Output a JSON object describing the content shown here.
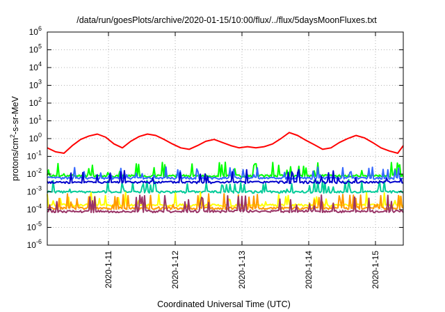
{
  "chart_data": {
    "type": "line",
    "title": "/data/run/goesPlots/archive/2020-01-15/10:00/flux/../flux/5daysMoonFluxes.txt",
    "xlabel": "Coordinated Universal Time (UTC)",
    "ylabel_main": "protons/cm",
    "ylabel_sup": "2",
    "ylabel_rest": "-s-sr-MeV",
    "y_scale": "log",
    "ylim_exp": [
      -6,
      6
    ],
    "y_ticks": [
      {
        "base": "10",
        "exp": "-6"
      },
      {
        "base": "10",
        "exp": "-5"
      },
      {
        "base": "10",
        "exp": "-4"
      },
      {
        "base": "10",
        "exp": "-3"
      },
      {
        "base": "10",
        "exp": "-2"
      },
      {
        "base": "10",
        "exp": "-1"
      },
      {
        "base": "10",
        "exp": "0"
      },
      {
        "base": "10",
        "exp": "1"
      },
      {
        "base": "10",
        "exp": "2"
      },
      {
        "base": "10",
        "exp": "3"
      },
      {
        "base": "10",
        "exp": "4"
      },
      {
        "base": "10",
        "exp": "5"
      },
      {
        "base": "10",
        "exp": "6"
      }
    ],
    "xlim": [
      "2020-01-10T02:00",
      "2020-01-15T10:00"
    ],
    "x_ticks": [
      {
        "date": "2020-01-11T00:00",
        "label": "2020-1-11"
      },
      {
        "date": "2020-01-12T00:00",
        "label": "2020-1-12"
      },
      {
        "date": "2020-01-13T00:00",
        "label": "2020-1-13"
      },
      {
        "date": "2020-01-14T00:00",
        "label": "2020-1-14"
      },
      {
        "date": "2020-01-15T00:00",
        "label": "2020-1-15"
      }
    ],
    "grid": true,
    "legend": "none",
    "series": [
      {
        "color": "#ff0000",
        "style": "smooth",
        "values": [
          {
            "t": "2020-01-10T02:00",
            "v": 0.3
          },
          {
            "t": "2020-01-10T05:00",
            "v": 0.18
          },
          {
            "t": "2020-01-10T08:00",
            "v": 0.15
          },
          {
            "t": "2020-01-10T11:00",
            "v": 0.4
          },
          {
            "t": "2020-01-10T14:00",
            "v": 0.9
          },
          {
            "t": "2020-01-10T17:00",
            "v": 1.4
          },
          {
            "t": "2020-01-10T20:00",
            "v": 1.8
          },
          {
            "t": "2020-01-10T23:00",
            "v": 1.2
          },
          {
            "t": "2020-01-11T02:00",
            "v": 0.5
          },
          {
            "t": "2020-01-11T05:00",
            "v": 0.3
          },
          {
            "t": "2020-01-11T08:00",
            "v": 0.7
          },
          {
            "t": "2020-01-11T11:00",
            "v": 1.3
          },
          {
            "t": "2020-01-11T14:00",
            "v": 1.8
          },
          {
            "t": "2020-01-11T17:00",
            "v": 1.5
          },
          {
            "t": "2020-01-11T20:00",
            "v": 0.9
          },
          {
            "t": "2020-01-11T23:00",
            "v": 0.5
          },
          {
            "t": "2020-01-12T02:00",
            "v": 0.3
          },
          {
            "t": "2020-01-12T05:00",
            "v": 0.25
          },
          {
            "t": "2020-01-12T08:00",
            "v": 0.4
          },
          {
            "t": "2020-01-12T11:00",
            "v": 0.7
          },
          {
            "t": "2020-01-12T14:00",
            "v": 0.9
          },
          {
            "t": "2020-01-12T17:00",
            "v": 0.6
          },
          {
            "t": "2020-01-12T20:00",
            "v": 0.4
          },
          {
            "t": "2020-01-12T23:00",
            "v": 0.3
          },
          {
            "t": "2020-01-13T02:00",
            "v": 0.35
          },
          {
            "t": "2020-01-13T05:00",
            "v": 0.3
          },
          {
            "t": "2020-01-13T08:00",
            "v": 0.35
          },
          {
            "t": "2020-01-13T11:00",
            "v": 0.5
          },
          {
            "t": "2020-01-13T14:00",
            "v": 1.0
          },
          {
            "t": "2020-01-13T17:00",
            "v": 2.2
          },
          {
            "t": "2020-01-13T20:00",
            "v": 1.5
          },
          {
            "t": "2020-01-13T23:00",
            "v": 0.8
          },
          {
            "t": "2020-01-14T02:00",
            "v": 0.45
          },
          {
            "t": "2020-01-14T05:00",
            "v": 0.25
          },
          {
            "t": "2020-01-14T08:00",
            "v": 0.3
          },
          {
            "t": "2020-01-14T11:00",
            "v": 0.6
          },
          {
            "t": "2020-01-14T14:00",
            "v": 1.0
          },
          {
            "t": "2020-01-14T17:00",
            "v": 1.5
          },
          {
            "t": "2020-01-14T20:00",
            "v": 1.1
          },
          {
            "t": "2020-01-14T23:00",
            "v": 0.6
          },
          {
            "t": "2020-01-15T02:00",
            "v": 0.3
          },
          {
            "t": "2020-01-15T05:00",
            "v": 0.2
          },
          {
            "t": "2020-01-15T08:00",
            "v": 0.15
          },
          {
            "t": "2020-01-15T10:00",
            "v": 0.4
          }
        ]
      },
      {
        "color": "#00ff00",
        "style": "spiky",
        "base": 0.008,
        "spike": 0.04,
        "seed": 11
      },
      {
        "color": "#00cc99",
        "style": "spiky",
        "base": 0.001,
        "spike": 0.004,
        "seed": 23
      },
      {
        "color": "#3366ff",
        "style": "spiky",
        "base": 0.006,
        "spike": 0.02,
        "seed": 37
      },
      {
        "color": "#0000cc",
        "style": "spiky",
        "base": 0.0035,
        "spike": 0.015,
        "seed": 41
      },
      {
        "color": "#ffff00",
        "style": "spiky",
        "base": 0.00018,
        "spike": 0.0008,
        "seed": 53
      },
      {
        "color": "#ff9900",
        "style": "spiky",
        "base": 0.00012,
        "spike": 0.0007,
        "seed": 67
      },
      {
        "color": "#993366",
        "style": "spiky",
        "base": 8e-05,
        "spike": 0.0006,
        "seed": 79
      }
    ]
  }
}
